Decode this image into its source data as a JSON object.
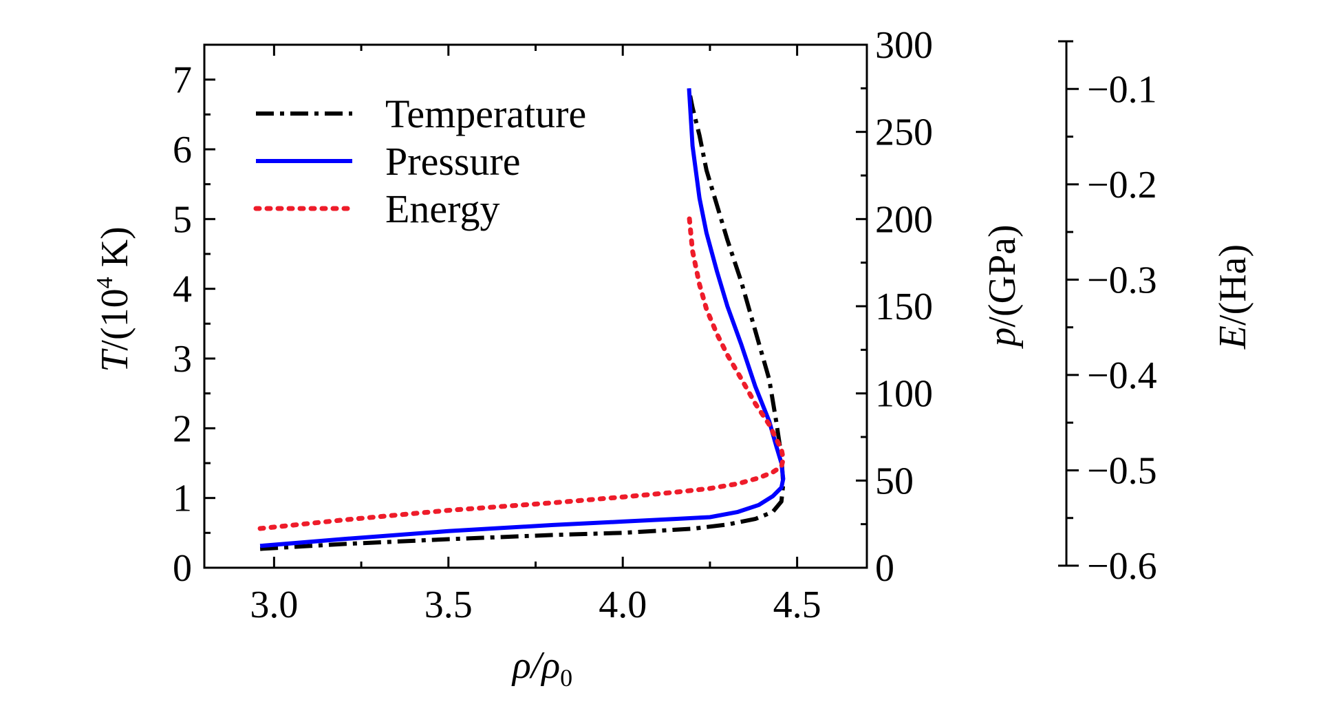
{
  "chart_data": {
    "type": "line",
    "title": "",
    "xlabel": "ρ/ρ",
    "xlabel_sub": "0",
    "xlim": [
      2.8,
      4.7
    ],
    "xticks": [
      3.0,
      3.5,
      4.0,
      4.5
    ],
    "xtick_labels": [
      "3.0",
      "3.5",
      "4.0",
      "4.5"
    ],
    "axes": {
      "T": {
        "label_italic": "T",
        "label_rest": "/(10",
        "label_sup": "4",
        "label_end": " K)",
        "lim": [
          0,
          7.5
        ],
        "ticks": [
          0,
          1,
          2,
          3,
          4,
          5,
          6,
          7
        ],
        "tick_labels": [
          "0",
          "1",
          "2",
          "3",
          "4",
          "5",
          "6",
          "7"
        ]
      },
      "p": {
        "label_italic": "p",
        "label_rest": "/(GPa)",
        "lim": [
          0,
          300
        ],
        "ticks": [
          0,
          50,
          100,
          150,
          200,
          250,
          300
        ],
        "tick_labels": [
          "0",
          "50",
          "100",
          "150",
          "200",
          "250",
          "300"
        ]
      },
      "E": {
        "label_italic": "E",
        "label_rest": "/(Ha)",
        "lim": [
          -0.6,
          -0.05
        ],
        "ticks": [
          -0.1,
          -0.2,
          -0.3,
          -0.4,
          -0.5,
          -0.6
        ],
        "tick_labels": [
          "−0.1",
          "−0.2",
          "−0.3",
          "−0.4",
          "−0.5",
          "−0.6"
        ]
      }
    },
    "legend_position": "top-left",
    "series": [
      {
        "name": "Temperature",
        "axis": "T",
        "color": "#000000",
        "style": "dash-dot",
        "x": [
          2.96,
          3.2,
          3.5,
          3.8,
          4.0,
          4.2,
          4.3,
          4.38,
          4.43,
          4.455,
          4.46,
          4.455,
          4.44,
          4.42,
          4.38,
          4.34,
          4.3,
          4.27,
          4.24,
          4.22,
          4.2,
          4.19
        ],
        "y": [
          0.27,
          0.34,
          0.41,
          0.47,
          0.5,
          0.56,
          0.62,
          0.7,
          0.8,
          0.95,
          1.2,
          1.6,
          2.1,
          2.7,
          3.4,
          4.1,
          4.7,
          5.2,
          5.7,
          6.2,
          6.6,
          6.85
        ]
      },
      {
        "name": "Pressure",
        "axis": "p",
        "color": "#0000ff",
        "style": "solid",
        "x": [
          2.96,
          3.2,
          3.5,
          3.8,
          4.0,
          4.15,
          4.25,
          4.33,
          4.39,
          4.43,
          4.455,
          4.46,
          4.455,
          4.44,
          4.42,
          4.38,
          4.34,
          4.3,
          4.27,
          4.24,
          4.22,
          4.2,
          4.19
        ],
        "y": [
          12.5,
          16.5,
          21,
          24.5,
          26.5,
          28,
          29,
          32,
          36,
          41,
          46,
          51,
          60,
          70,
          84,
          104,
          128,
          150,
          170,
          192,
          212,
          242,
          275
        ]
      },
      {
        "name": "Energy",
        "axis": "E",
        "color": "#ee1c2a",
        "style": "dotted",
        "x": [
          2.96,
          3.2,
          3.5,
          3.8,
          4.0,
          4.15,
          4.25,
          4.33,
          4.39,
          4.43,
          4.455,
          4.46,
          4.455,
          4.44,
          4.42,
          4.38,
          4.34,
          4.3,
          4.27,
          4.24,
          4.22,
          4.2,
          4.19
        ],
        "y": [
          -0.561,
          -0.552,
          -0.542,
          -0.534,
          -0.528,
          -0.523,
          -0.519,
          -0.514,
          -0.508,
          -0.502,
          -0.496,
          -0.488,
          -0.478,
          -0.467,
          -0.452,
          -0.43,
          -0.404,
          -0.379,
          -0.357,
          -0.331,
          -0.305,
          -0.27,
          -0.232
        ]
      }
    ]
  }
}
